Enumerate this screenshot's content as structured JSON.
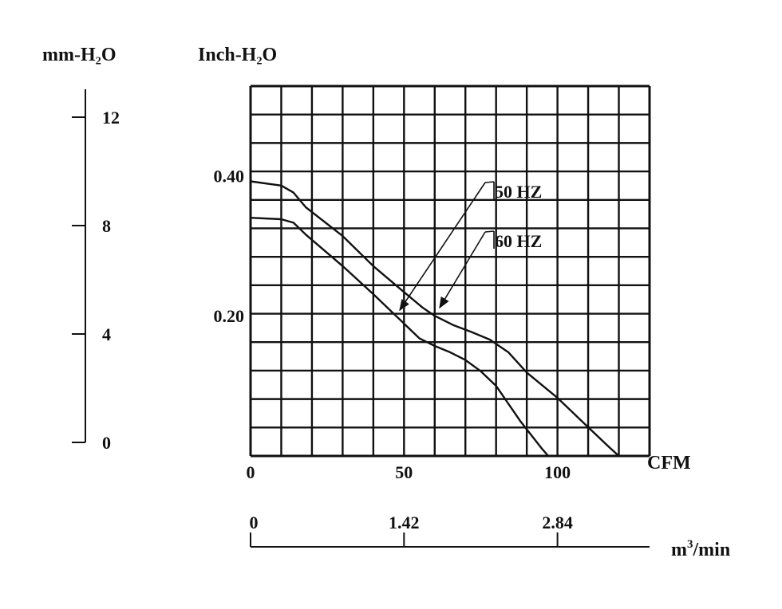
{
  "chart_data": {
    "type": "line",
    "title": "",
    "y_left_label": "mm-H₂O",
    "y_right_label": "Inch-H₂O",
    "x_label": "CFM",
    "x2_label_base": "m",
    "x2_label_sup": "3",
    "x2_label_tail": "/min",
    "xlim": [
      0,
      130
    ],
    "ylim": [
      0,
      0.528
    ],
    "grid": true,
    "grid_divisions": {
      "x": 13,
      "y": 13
    },
    "x_ticks": [
      {
        "value": 0,
        "label": "0"
      },
      {
        "value": 50,
        "label": "50"
      },
      {
        "value": 100,
        "label": "100"
      }
    ],
    "y_ticks_inch": [
      {
        "value": 0.4,
        "label": "0.40"
      },
      {
        "value": 0.2,
        "label": "0.20"
      }
    ],
    "mm_ticks": [
      {
        "value": 0,
        "label": "0"
      },
      {
        "value": 4,
        "label": "4"
      },
      {
        "value": 8,
        "label": "8"
      },
      {
        "value": 12,
        "label": "12"
      }
    ],
    "m3_ticks": [
      {
        "value": 0,
        "label": "0",
        "cfm": 0
      },
      {
        "value": 1.42,
        "label": "1.42",
        "cfm": 50
      },
      {
        "value": 2.84,
        "label": "2.84",
        "cfm": 100
      }
    ],
    "series": [
      {
        "name": "50 HZ",
        "points": [
          [
            0,
            0.392
          ],
          [
            10,
            0.386
          ],
          [
            14,
            0.376
          ],
          [
            18,
            0.355
          ],
          [
            30,
            0.314
          ],
          [
            40,
            0.271
          ],
          [
            50,
            0.234
          ],
          [
            56,
            0.212
          ],
          [
            60,
            0.2
          ],
          [
            66,
            0.187
          ],
          [
            72,
            0.177
          ],
          [
            78,
            0.166
          ],
          [
            84,
            0.148
          ],
          [
            90,
            0.119
          ],
          [
            100,
            0.083
          ],
          [
            110,
            0.041
          ],
          [
            117,
            0.012
          ],
          [
            120,
            0
          ]
        ]
      },
      {
        "name": "60 HZ",
        "points": [
          [
            0,
            0.34
          ],
          [
            10,
            0.338
          ],
          [
            14,
            0.333
          ],
          [
            18,
            0.316
          ],
          [
            30,
            0.271
          ],
          [
            40,
            0.231
          ],
          [
            50,
            0.189
          ],
          [
            55,
            0.168
          ],
          [
            60,
            0.157
          ],
          [
            65,
            0.148
          ],
          [
            70,
            0.137
          ],
          [
            75,
            0.121
          ],
          [
            80,
            0.1
          ],
          [
            88,
            0.049
          ],
          [
            95,
            0.01
          ],
          [
            97,
            0
          ]
        ]
      }
    ]
  }
}
